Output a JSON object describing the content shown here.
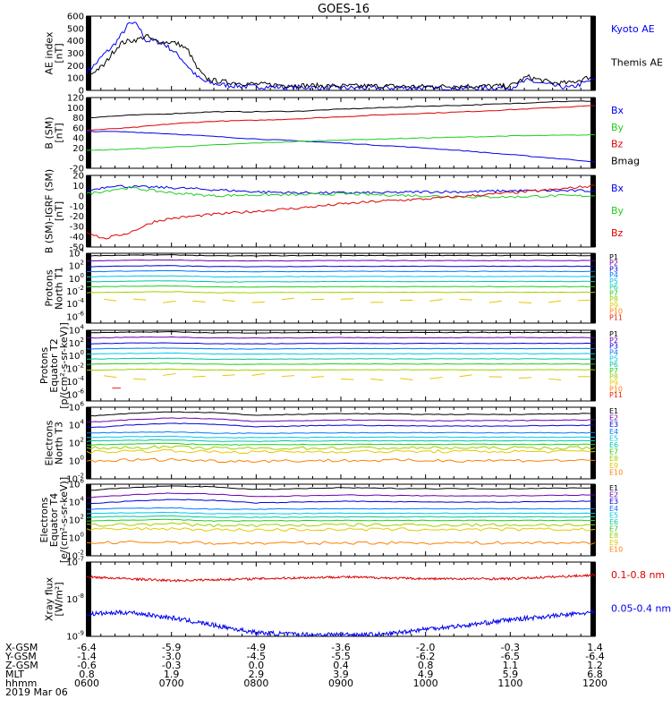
{
  "title": "GOES-16",
  "colors": {
    "black": "#000000",
    "blue": "#0000ee",
    "green": "#22cc22",
    "red": "#dd0000",
    "P": [
      "#000000",
      "#6a00b0",
      "#0000dd",
      "#0077ff",
      "#00c8e8",
      "#00c8a0",
      "#22cc22",
      "#a0d000",
      "#e6c800",
      "#ff8000",
      "#e82000",
      "#c00000"
    ],
    "E": [
      "#000000",
      "#6a00b0",
      "#0000dd",
      "#0077ff",
      "#00c8e8",
      "#00c8a0",
      "#22cc22",
      "#a0d000",
      "#e6c800",
      "#ff8000",
      "#e82000",
      "#c00000"
    ]
  },
  "chart_data": [
    {
      "type": "line",
      "id": "ae",
      "ylabel": [
        "AE index",
        "[nT]"
      ],
      "ylim": [
        0,
        600
      ],
      "yticks": [
        "0",
        "100",
        "200",
        "300",
        "400",
        "500",
        "600"
      ],
      "legend": [
        {
          "label": "Kyoto AE",
          "color": "blue"
        },
        {
          "label": "Themis AE",
          "color": "black"
        }
      ],
      "series": [
        {
          "color": "blue",
          "x": [
            0,
            0.1,
            0.2,
            0.3,
            0.4,
            0.5,
            0.6,
            0.7,
            0.8,
            0.9,
            1.0,
            1.1,
            1.2,
            1.3,
            1.4,
            1.5,
            1.6,
            1.7,
            1.8,
            1.9,
            2.0,
            2.5,
            3,
            3.5,
            4,
            4.5,
            5,
            5.2,
            5.5,
            5.7,
            6
          ],
          "y": [
            150,
            210,
            290,
            350,
            440,
            540,
            530,
            400,
            400,
            380,
            330,
            270,
            190,
            110,
            70,
            55,
            45,
            40,
            35,
            30,
            30,
            25,
            20,
            20,
            20,
            20,
            20,
            80,
            40,
            20,
            90
          ]
        },
        {
          "color": "black",
          "x": [
            0,
            0.1,
            0.2,
            0.3,
            0.4,
            0.5,
            0.6,
            0.7,
            0.8,
            0.9,
            1.0,
            1.1,
            1.2,
            1.3,
            1.4,
            1.5,
            1.6,
            1.7,
            1.8,
            1.9,
            2.0,
            2.5,
            3,
            3.5,
            4,
            4.5,
            5,
            5.2,
            5.5,
            5.7,
            6
          ],
          "y": [
            100,
            160,
            200,
            300,
            380,
            400,
            410,
            440,
            400,
            390,
            390,
            370,
            320,
            180,
            100,
            80,
            70,
            65,
            60,
            55,
            50,
            40,
            35,
            35,
            30,
            35,
            35,
            110,
            60,
            60,
            120
          ]
        }
      ]
    },
    {
      "type": "line",
      "id": "b",
      "ylabel": [
        "B (SM)",
        "[nT]"
      ],
      "ylim": [
        -20,
        120
      ],
      "yticks": [
        "-20",
        "0",
        "20",
        "40",
        "60",
        "80",
        "100",
        "120"
      ],
      "legend": [
        {
          "label": "Bx",
          "color": "blue"
        },
        {
          "label": "By",
          "color": "green"
        },
        {
          "label": "Bz",
          "color": "red"
        },
        {
          "label": "Bmag",
          "color": "black"
        }
      ],
      "series": [
        {
          "color": "black",
          "x": [
            0,
            0.5,
            1,
            1.5,
            2,
            2.5,
            3,
            3.5,
            4,
            4.5,
            5,
            5.5,
            6
          ],
          "y": [
            80,
            85,
            88,
            92,
            92,
            93,
            97,
            100,
            103,
            105,
            108,
            112,
            113
          ]
        },
        {
          "color": "red",
          "x": [
            0,
            0.5,
            1,
            1.5,
            2,
            2.5,
            3,
            3.5,
            4,
            4.5,
            5,
            5.5,
            6
          ],
          "y": [
            55,
            60,
            68,
            73,
            75,
            78,
            82,
            86,
            89,
            92,
            96,
            100,
            104
          ]
        },
        {
          "color": "blue",
          "x": [
            0,
            0.5,
            1,
            1.5,
            2,
            2.5,
            3,
            3.5,
            4,
            4.5,
            5,
            5.5,
            6
          ],
          "y": [
            53,
            52,
            48,
            43,
            38,
            34,
            30,
            25,
            20,
            14,
            7,
            0,
            -7
          ]
        },
        {
          "color": "green",
          "x": [
            0,
            0.5,
            1,
            1.5,
            2,
            2.5,
            3,
            3.5,
            4,
            4.5,
            5,
            5.5,
            6
          ],
          "y": [
            15,
            18,
            22,
            26,
            30,
            33,
            36,
            38,
            40,
            42,
            44,
            45,
            46
          ]
        }
      ]
    },
    {
      "type": "line",
      "id": "bdiff",
      "ylabel": [
        "B (SM)-IGRF (SM)",
        "[nT]"
      ],
      "ylim": [
        -50,
        20
      ],
      "yticks": [
        "-50",
        "-40",
        "-30",
        "-20",
        "-10",
        "0",
        "10",
        "20"
      ],
      "legend": [
        {
          "label": "Bx",
          "color": "blue"
        },
        {
          "label": "By",
          "color": "green"
        },
        {
          "label": "Bz",
          "color": "red"
        }
      ],
      "series": [
        {
          "color": "blue",
          "x": [
            0,
            0.3,
            0.5,
            1,
            1.5,
            2,
            2.5,
            3,
            3.5,
            4,
            4.5,
            5,
            5.5,
            6
          ],
          "y": [
            5,
            10,
            9,
            8,
            6,
            4,
            3,
            3,
            3,
            4,
            4,
            5,
            5,
            5
          ]
        },
        {
          "color": "green",
          "x": [
            0,
            0.3,
            0.5,
            1,
            1.5,
            2,
            2.5,
            3,
            3.5,
            4,
            4.5,
            5,
            5.5,
            6
          ],
          "y": [
            2,
            6,
            8,
            3,
            0,
            1,
            1,
            2,
            1,
            0,
            -1,
            -1,
            0,
            0
          ]
        },
        {
          "color": "red",
          "x": [
            0,
            0.2,
            0.5,
            0.8,
            1,
            1.5,
            2,
            2.5,
            3,
            3.5,
            4,
            4.5,
            5,
            5.5,
            6
          ],
          "y": [
            -35,
            -42,
            -36,
            -25,
            -22,
            -18,
            -15,
            -12,
            -8,
            -5,
            -3,
            0,
            3,
            6,
            10
          ]
        }
      ]
    },
    {
      "type": "line",
      "id": "pn",
      "ylabel": [
        "Protons",
        "North T1"
      ],
      "log": true,
      "ylim": [
        -7,
        4
      ],
      "yticks": [
        "10^4",
        "10^2",
        "10^0",
        "10^-2",
        "10^-4",
        "10^-6"
      ],
      "legend_small": [
        "P1",
        "P2",
        "P3",
        "P4",
        "P5",
        "P6",
        "P7",
        "P8",
        "P9",
        "P10",
        "P11"
      ],
      "levels": [
        3.6,
        2.8,
        1.9,
        1.1,
        0.3,
        -0.5,
        -1.3,
        -2.2,
        -3.5
      ],
      "dashed_level": -3.5
    },
    {
      "type": "line",
      "id": "pe",
      "ylabel": [
        "Protons",
        "Equator T2",
        "[p/(cm²-s-sr-keV)]"
      ],
      "log": true,
      "ylim": [
        -7,
        4
      ],
      "yticks": [
        "10^4",
        "10^2",
        "10^0",
        "10^-2",
        "10^-4",
        "10^-6"
      ],
      "legend_small": [
        "P1",
        "P2",
        "P3",
        "P4",
        "P5",
        "P6",
        "P7",
        "P8",
        "P9",
        "P10",
        "P11"
      ],
      "levels": [
        3.6,
        2.8,
        1.9,
        1.1,
        0.3,
        -0.5,
        -1.3,
        -2.2,
        -3.3
      ],
      "dashed_level": -3.3
    },
    {
      "type": "line",
      "id": "en",
      "ylabel": [
        "Electrons",
        "North T3"
      ],
      "log": true,
      "ylim": [
        -2,
        6
      ],
      "yticks": [
        "10^6",
        "10^4",
        "10^2",
        "10^0",
        "10^-2"
      ],
      "legend_small": [
        "E1",
        "E2",
        "E3",
        "E4",
        "E5",
        "E6",
        "E7",
        "E8",
        "E9",
        "E10"
      ],
      "levels": [
        5.0,
        4.3,
        3.7,
        3.1,
        2.6,
        2.2,
        1.8,
        1.4,
        1.0,
        0.0
      ]
    },
    {
      "type": "line",
      "id": "ee",
      "ylabel": [
        "Electrons",
        "Equator T4",
        "[e/(cm²-s-sr-keV)]"
      ],
      "log": true,
      "ylim": [
        -2,
        6
      ],
      "yticks": [
        "10^6",
        "10^4",
        "10^2",
        "10^0",
        "10^-2"
      ],
      "legend_small": [
        "E1",
        "E2",
        "E3",
        "E4",
        "E5",
        "E6",
        "E7",
        "E8",
        "E9",
        "E10"
      ],
      "levels": [
        5.3,
        4.5,
        3.8,
        3.2,
        2.7,
        2.3,
        1.9,
        1.4,
        0.9,
        -0.6
      ]
    },
    {
      "type": "line",
      "id": "xray",
      "ylabel": [
        "Xray flux",
        "[W/m²]"
      ],
      "log": true,
      "ylim": [
        -9,
        -7
      ],
      "yticks": [
        "10^-7",
        "10^-8",
        "10^-9"
      ],
      "legend": [
        {
          "label": "0.1-0.8 nm",
          "color": "red"
        },
        {
          "label": "0.05-0.4 nm",
          "color": "blue"
        }
      ],
      "series": [
        {
          "color": "red",
          "x": [
            0,
            1,
            2,
            3,
            4,
            5,
            6
          ],
          "y": [
            -7.4,
            -7.5,
            -7.45,
            -7.4,
            -7.45,
            -7.45,
            -7.35
          ]
        },
        {
          "color": "blue",
          "x": [
            0,
            0.5,
            1,
            1.5,
            2,
            2.5,
            3,
            3.5,
            4,
            4.5,
            5,
            5.5,
            6
          ],
          "y": [
            -8.4,
            -8.35,
            -8.5,
            -8.7,
            -8.9,
            -8.95,
            -8.95,
            -8.95,
            -8.8,
            -8.7,
            -8.55,
            -8.45,
            -8.35
          ]
        }
      ]
    }
  ],
  "ephemeris": {
    "labels": [
      "X-GSM",
      "Y-GSM",
      "Z-GSM",
      "MLT",
      "hhmm"
    ],
    "rows": [
      [
        "-6.4",
        "-5.9",
        "-4.9",
        "-3.6",
        "-2.0",
        "-0.3",
        "1.4"
      ],
      [
        "-1.4",
        "-3.0",
        "-4.5",
        "-5.5",
        "-6.2",
        "-6.5",
        "-6.4"
      ],
      [
        "-0.6",
        "-0.3",
        "0.0",
        "0.4",
        "0.8",
        "1.1",
        "1.2"
      ],
      [
        "0.8",
        "1.9",
        "2.9",
        "3.9",
        "4.9",
        "5.9",
        "6.8"
      ],
      [
        "0600",
        "0700",
        "0800",
        "0900",
        "1000",
        "1100",
        "1200"
      ]
    ],
    "date": "2019 Mar 06"
  }
}
